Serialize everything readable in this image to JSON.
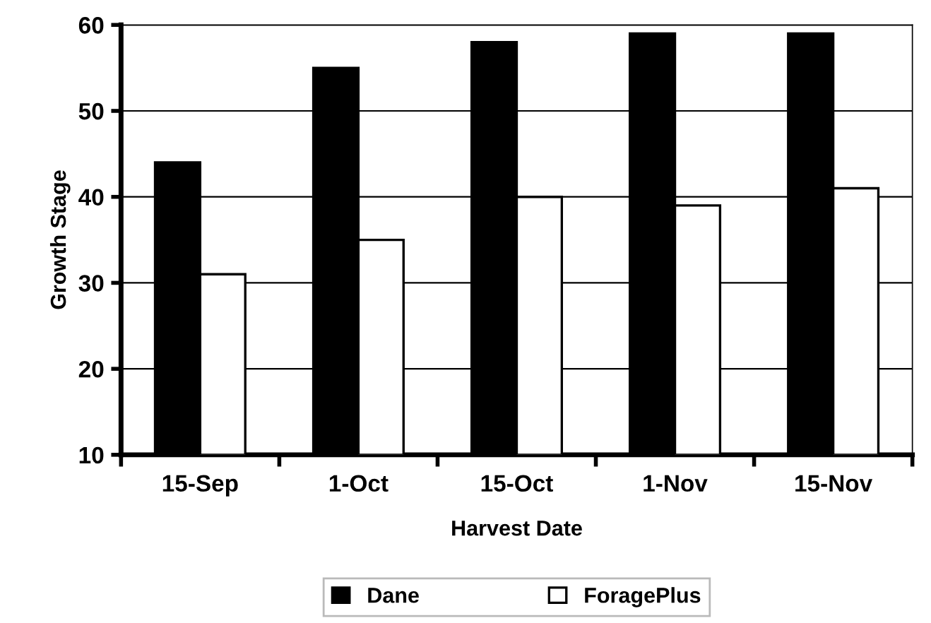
{
  "chart_data": {
    "type": "bar",
    "xlabel": "Harvest Date",
    "ylabel": "Growth Stage",
    "categories": [
      "15-Sep",
      "1-Oct",
      "15-Oct",
      "1-Nov",
      "15-Nov"
    ],
    "series": [
      {
        "name": "Dane",
        "color": "#000000",
        "values": [
          44,
          55,
          58,
          59,
          59
        ]
      },
      {
        "name": "ForagePlus",
        "color": "#ffffff",
        "values": [
          31,
          35,
          40,
          39,
          41
        ]
      }
    ],
    "ylim": [
      10,
      60
    ],
    "yticks": [
      10,
      20,
      30,
      40,
      50,
      60
    ],
    "grid": "y",
    "legend": "bottom"
  }
}
